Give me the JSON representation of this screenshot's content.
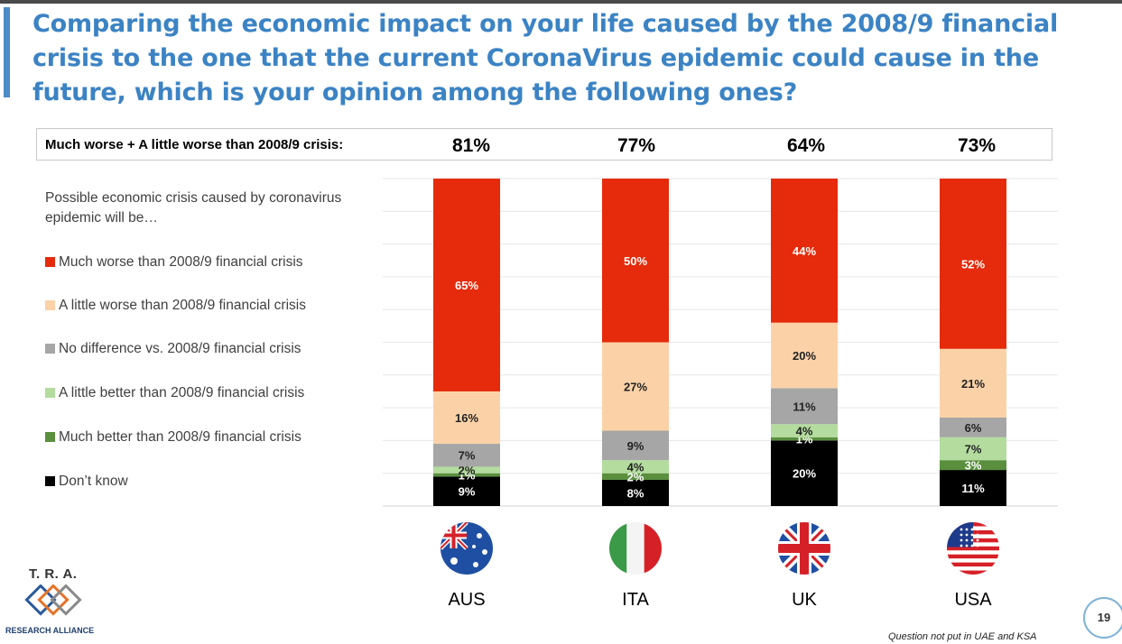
{
  "title": "Comparing the economic impact on your life caused by the 2008/9 financial crisis to the one that the current CoronaVirus epidemic could cause in the future, which is your opinion among the following ones?",
  "summary": {
    "label": "Much worse + A little worse than 2008/9 crisis:",
    "values": [
      "81%",
      "77%",
      "64%",
      "73%"
    ]
  },
  "legend": {
    "title": "Possible economic crisis caused by coronavirus epidemic will be…",
    "items": [
      {
        "label": "Much worse than 2008/9 financial crisis",
        "color": "#e52b0b"
      },
      {
        "label": "A little worse than 2008/9 financial crisis",
        "color": "#fbd2a8"
      },
      {
        "label": "No difference vs. 2008/9 financial crisis",
        "color": "#a6a6a6"
      },
      {
        "label": "A little better than 2008/9 financial crisis",
        "color": "#b3dc9e"
      },
      {
        "label": "Much better than 2008/9 financial crisis",
        "color": "#5a8f3e"
      },
      {
        "label": "Don’t know",
        "color": "#000000"
      }
    ]
  },
  "chart_data": {
    "type": "bar",
    "stacked": true,
    "categories": [
      "AUS",
      "ITA",
      "UK",
      "USA"
    ],
    "series": [
      {
        "name": "Much worse than 2008/9 financial crisis",
        "values": [
          65,
          50,
          44,
          52
        ],
        "color": "#e52b0b"
      },
      {
        "name": "A little worse than 2008/9 financial crisis",
        "values": [
          16,
          27,
          20,
          21
        ],
        "color": "#fbd2a8"
      },
      {
        "name": "No difference vs. 2008/9 financial crisis",
        "values": [
          7,
          9,
          11,
          6
        ],
        "color": "#a6a6a6"
      },
      {
        "name": "A little better than 2008/9 financial crisis",
        "values": [
          2,
          4,
          4,
          7
        ],
        "color": "#b3dc9e"
      },
      {
        "name": "Much better than 2008/9 financial crisis",
        "values": [
          1,
          2,
          1,
          3
        ],
        "color": "#5a8f3e"
      },
      {
        "name": "Don’t know",
        "values": [
          9,
          8,
          20,
          11
        ],
        "color": "#000000"
      }
    ],
    "flags": [
      "flag-australia",
      "flag-italy",
      "flag-uk",
      "flag-usa"
    ],
    "grid": true
  },
  "footnote": "Question not put in UAE and KSA",
  "page_number": "19",
  "logo": {
    "top_text": "T. R. A.",
    "bottom_text": "RESEARCH ALLIANCE"
  }
}
